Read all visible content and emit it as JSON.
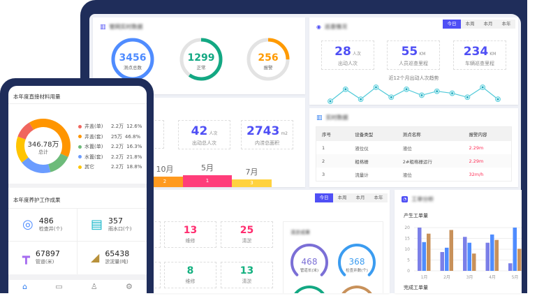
{
  "desktop": {
    "network": {
      "title": "管网实时数据",
      "rings": [
        {
          "value": "3456",
          "label": "测点总数",
          "color": "#4f8cff",
          "fraction": 1.0
        },
        {
          "value": "1299",
          "label": "正常",
          "color": "#13a883",
          "fraction": 0.6
        },
        {
          "value": "256",
          "label": "报警",
          "color": "#ff9a00",
          "fraction": 0.25
        }
      ]
    },
    "patrol": {
      "title": "巡查情况",
      "tabs": [
        "今日",
        "本周",
        "本月",
        "本年"
      ],
      "active_tab": "今日",
      "stats": [
        {
          "value": "28",
          "unit": "人次",
          "label": "出动人次"
        },
        {
          "value": "55",
          "unit": "KM",
          "label": "人员巡查里程"
        },
        {
          "value": "234",
          "unit": "KM",
          "label": "车辆巡查里程"
        }
      ],
      "trend_title": "近12个月出动人次趋势",
      "trend_values": [
        2,
        8,
        3,
        9,
        4,
        8,
        5,
        7,
        6,
        4,
        9,
        3
      ],
      "trend_color": "#4fc9d8"
    },
    "flood": {
      "stats": [
        {
          "value": "42",
          "unit": "人次",
          "label": "出动总人次"
        },
        {
          "value": "2743",
          "unit": "m2",
          "label": "内涝总面积"
        }
      ],
      "bars": [
        {
          "month": "10月",
          "rank": "2",
          "color": "#ff9a1f"
        },
        {
          "month": "5月",
          "rank": "1",
          "color": "#ff3d7a"
        },
        {
          "month": "7月",
          "rank": "3",
          "color": "#ffd23f"
        }
      ]
    },
    "realtime": {
      "title": "实时数据",
      "columns": [
        "序号",
        "设备类型",
        "测点名称",
        "报警内容"
      ],
      "rows": [
        [
          "1",
          "液位仪",
          "液位",
          "2.29m"
        ],
        [
          "2",
          "粗格栅",
          "2#粗格栅运行",
          "2.29m"
        ],
        [
          "3",
          "流量计",
          "液位",
          "32m/h"
        ]
      ]
    },
    "maintenance": {
      "tabs": [
        "今日",
        "本周",
        "本月",
        "本年"
      ],
      "active_tab": "今日",
      "row1": [
        {
          "value": "13",
          "label": "维修",
          "color": "#ff2d6f"
        },
        {
          "value": "25",
          "label": "清淤",
          "color": "#ff2d6f"
        }
      ],
      "row2": [
        {
          "value": "8",
          "label": "维修",
          "color": "#13b07f"
        },
        {
          "value": "13",
          "label": "清淤",
          "color": "#13b07f"
        }
      ],
      "dredge": {
        "title": "清淤成果",
        "rings": [
          {
            "value": "468",
            "label": "管道长(米)",
            "color": "#7b6fd6"
          },
          {
            "value": "368",
            "label": "检查井数(个)",
            "color": "#3b9cf0"
          }
        ],
        "more_ring_colors": [
          "#13a883",
          "#c8915a"
        ]
      }
    },
    "workorder": {
      "title": "工单分析",
      "chart_title": "产生工单量",
      "next_title": "完成工单量"
    }
  },
  "chart_data": {
    "type": "bar",
    "title": "产生工单量",
    "categories": [
      "1月",
      "2月",
      "3月",
      "4月",
      "5月"
    ],
    "series": [
      {
        "color": "#7b7fe8",
        "values": [
          20,
          8.7,
          15.7,
          13,
          3.5
        ]
      },
      {
        "color": "#4f8cff",
        "values": [
          13.3,
          10.7,
          13,
          16.8,
          20
        ]
      },
      {
        "color": "#c8915a",
        "values": [
          17.2,
          18.9,
          8,
          14.3,
          10.2
        ]
      }
    ],
    "yticks": [
      0,
      5,
      10,
      15,
      20
    ],
    "ylim": [
      0,
      20
    ],
    "grid": true
  },
  "mobile": {
    "materials": {
      "title": "本年度直接材料用量",
      "total": "346.78万",
      "total_label": "总计",
      "items": [
        {
          "name": "井盖(单)",
          "amount": "2.2万",
          "pct": "12.6%",
          "value": 12.6,
          "color": "#f0665e"
        },
        {
          "name": "井盖(套)",
          "amount": "25万",
          "pct": "46.8%",
          "value": 46.8,
          "color": "#ff9500"
        },
        {
          "name": "水篦(单)",
          "amount": "2.2万",
          "pct": "16.3%",
          "value": 16.3,
          "color": "#6dbb7a"
        },
        {
          "name": "水篦(套)",
          "amount": "2.2万",
          "pct": "21.8%",
          "value": 21.8,
          "color": "#6b9cff"
        },
        {
          "name": "其它",
          "amount": "2.2万",
          "pct": "18.8%",
          "value": 18.8,
          "color": "#ffc400"
        }
      ]
    },
    "results": {
      "title": "本年度养护工作成果",
      "items": [
        {
          "value": "486",
          "label": "检查井(个)",
          "icon": "manhole-icon"
        },
        {
          "value": "357",
          "label": "雨水口(个)",
          "icon": "grate-icon"
        },
        {
          "value": "67897",
          "label": "管道(米)",
          "icon": "pipe-icon"
        },
        {
          "value": "65438",
          "label": "淤泥量(吨)",
          "icon": "sludge-icon"
        }
      ]
    },
    "nav": [
      "home-icon",
      "message-icon",
      "user-icon",
      "settings-icon"
    ]
  }
}
